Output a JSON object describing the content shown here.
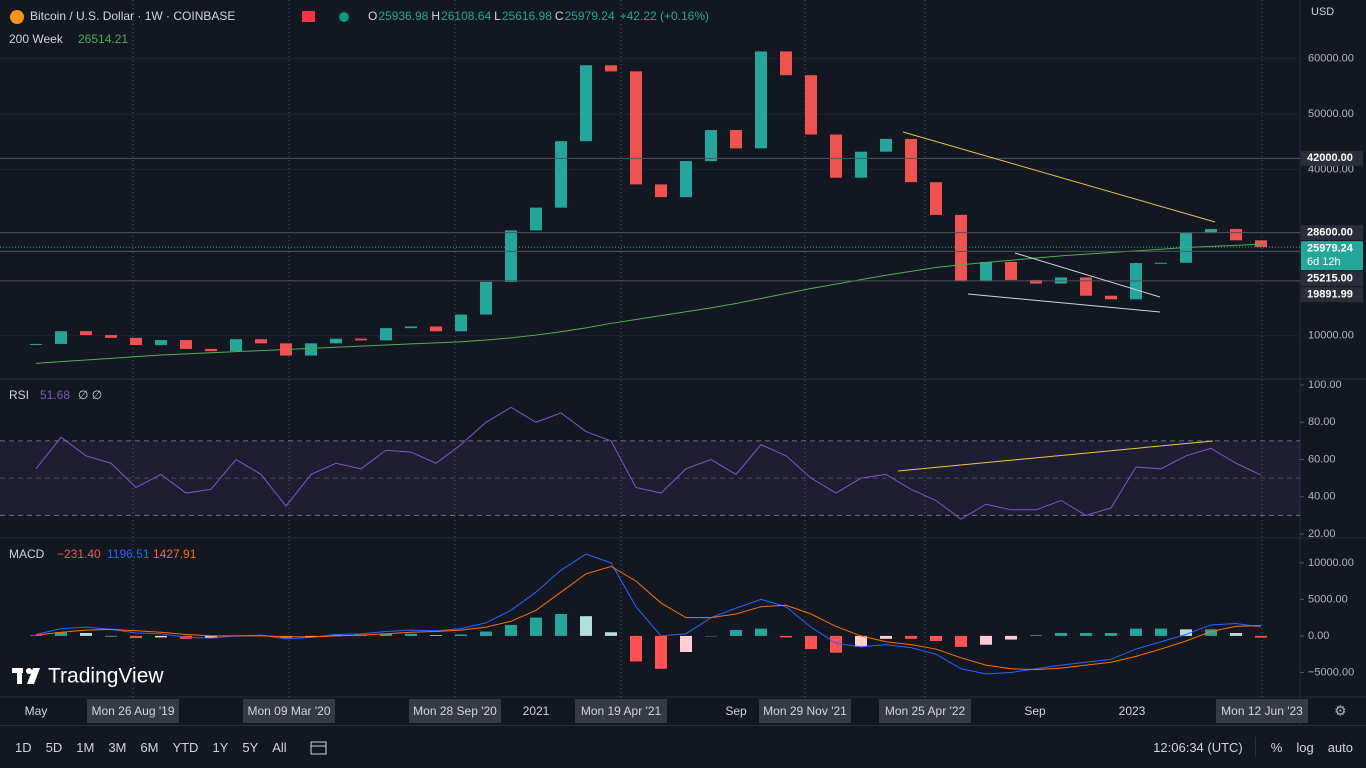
{
  "header": {
    "title": "Bitcoin / U.S. Dollar · 1W · COINBASE",
    "ohlc": [
      {
        "label": "O",
        "value": "25936.98"
      },
      {
        "label": "H",
        "value": "26108.64"
      },
      {
        "label": "L",
        "value": "25616.98"
      },
      {
        "label": "C",
        "value": "25979.24"
      }
    ],
    "change": "+42.22 (+0.16%)",
    "indicator": {
      "name": "200 Week",
      "value": "26514.21"
    }
  },
  "price_pane": {
    "currency": "USD",
    "up_color": "#26a69a",
    "down_color": "#ef5350",
    "ma_color": "#4caf50",
    "ylim": [
      2350,
      70580
    ],
    "yticks": [
      {
        "value": 10000,
        "label": "10000.00"
      },
      {
        "value": 40000,
        "label": "40000.00"
      },
      {
        "value": 50000,
        "label": "50000.00"
      },
      {
        "value": 60000,
        "label": "60000.00"
      }
    ],
    "closes": [
      8500,
      10800,
      10100,
      9600,
      8300,
      9200,
      7600,
      7200,
      9350,
      8600,
      6400,
      8600,
      9450,
      9140,
      11350,
      11650,
      10780,
      13800,
      19700,
      29000,
      33100,
      45100,
      58800,
      57700,
      37300,
      35000,
      41500,
      47100,
      43800,
      61300,
      57000,
      46300,
      38500,
      43200,
      45500,
      37700,
      31800,
      19900,
      23300,
      20050,
      19400,
      20500,
      17200,
      16550,
      23100,
      23150,
      28500,
      29250,
      27200,
      25979.24
    ],
    "ma200": [
      5000,
      5300,
      5600,
      5900,
      6200,
      6500,
      6700,
      6900,
      7100,
      7300,
      7500,
      7700,
      7900,
      8100,
      8300,
      8500,
      8700,
      8900,
      9200,
      9600,
      10100,
      10700,
      11400,
      12200,
      12900,
      13600,
      14300,
      15000,
      15800,
      16700,
      17600,
      18500,
      19300,
      20100,
      20900,
      21600,
      22300,
      22800,
      23200,
      23600,
      24000,
      24400,
      24700,
      25000,
      25300,
      25600,
      25900,
      26100,
      26300,
      26514.21
    ],
    "price_lines": [
      {
        "value": 42000,
        "label": "42000.00"
      },
      {
        "value": 28600,
        "label": "28600.00"
      },
      {
        "value": 25215,
        "label": "25215.00"
      },
      {
        "value": 19891.99,
        "label": "19891.99"
      }
    ],
    "current": {
      "value": 25979.24,
      "label": "25979.24",
      "countdown": "6d 12h"
    }
  },
  "rsi_pane": {
    "name": "RSI",
    "value": "51.68",
    "extra": "∅ ∅",
    "color": "#7e57c2",
    "ylim": [
      18.4,
      102.7
    ],
    "yticks": [
      {
        "value": 100,
        "label": "100.00"
      },
      {
        "value": 80,
        "label": "80.00"
      },
      {
        "value": 60,
        "label": "60.00"
      },
      {
        "value": 40,
        "label": "40.00"
      },
      {
        "value": 20,
        "label": "20.00"
      }
    ],
    "levels": [
      70,
      50,
      30
    ],
    "values": [
      55,
      72,
      62,
      58,
      45,
      52,
      42,
      44,
      60,
      52,
      35,
      52,
      58,
      55,
      65,
      64,
      58,
      68,
      80,
      88,
      80,
      85,
      75,
      70,
      45,
      42,
      55,
      60,
      52,
      68,
      62,
      50,
      42,
      50,
      52,
      44,
      38,
      28,
      36,
      33,
      33,
      38,
      30,
      34,
      56,
      55,
      62,
      66,
      58,
      51.68
    ]
  },
  "macd_pane": {
    "name": "MACD",
    "legend": [
      "−231.40",
      "1196.51",
      "1427.91"
    ],
    "macd_color": "#2962ff",
    "signal_color": "#ff6d00",
    "hist_colors": [
      "#26a69a",
      "#b2dfdb",
      "#ffcdd2",
      "#ff5252"
    ],
    "ylim": [
      -8360,
      13400
    ],
    "yticks": [
      {
        "value": 10000,
        "label": "10000.00"
      },
      {
        "value": 5000,
        "label": "5000.00"
      },
      {
        "value": 0,
        "label": "0.00"
      },
      {
        "value": -5000,
        "label": "−5000.00"
      }
    ],
    "macd": [
      200,
      1000,
      1200,
      900,
      400,
      300,
      -200,
      -300,
      0,
      100,
      -400,
      -200,
      200,
      300,
      600,
      800,
      700,
      1000,
      1800,
      3500,
      6000,
      9000,
      11200,
      10000,
      4000,
      0,
      300,
      2500,
      3800,
      5000,
      4000,
      1200,
      -1000,
      -1500,
      -1200,
      -1600,
      -2500,
      -4500,
      -5200,
      -5000,
      -4500,
      -4000,
      -3600,
      -3200,
      -1800,
      -800,
      200,
      1500,
      1700,
      1196.51
    ],
    "signal": [
      100,
      500,
      800,
      900,
      700,
      500,
      200,
      0,
      0,
      0,
      -100,
      -150,
      0,
      100,
      300,
      500,
      600,
      800,
      1200,
      2000,
      3500,
      6000,
      8500,
      9500,
      7500,
      4500,
      2500,
      2500,
      3000,
      4000,
      4200,
      3000,
      1300,
      0,
      -800,
      -1200,
      -1800,
      -3000,
      -4000,
      -4500,
      -4600,
      -4400,
      -4000,
      -3600,
      -2800,
      -1800,
      -700,
      600,
      1300,
      1427.91
    ],
    "histogram": [
      100,
      500,
      400,
      0,
      -300,
      -200,
      -400,
      -300,
      0,
      100,
      -300,
      -50,
      200,
      200,
      300,
      300,
      100,
      200,
      600,
      1500,
      2500,
      3000,
      2700,
      500,
      -3500,
      -4500,
      -2200,
      0,
      800,
      1000,
      -200,
      -1800,
      -2300,
      -1500,
      -400,
      -400,
      -700,
      -1500,
      -1200,
      -500,
      100,
      400,
      400,
      400,
      1000,
      1000,
      900,
      900,
      400,
      -231.4
    ]
  },
  "logo": "TradingView",
  "time_axis": [
    "May",
    "Mon 26 Aug '19",
    "Mon 09 Mar '20",
    "Mon 28 Sep '20",
    "2021",
    "Mon 19 Apr '21",
    "Sep",
    "Mon 29 Nov '21",
    "Mon 25 Apr '22",
    "Sep",
    "2023",
    "Mon 12 Jun '23"
  ],
  "toolbar": {
    "ranges": [
      "1D",
      "5D",
      "1M",
      "3M",
      "6M",
      "YTD",
      "1Y",
      "5Y",
      "All"
    ],
    "clock": "12:06:34 (UTC)",
    "options": [
      "%",
      "log",
      "auto"
    ]
  }
}
